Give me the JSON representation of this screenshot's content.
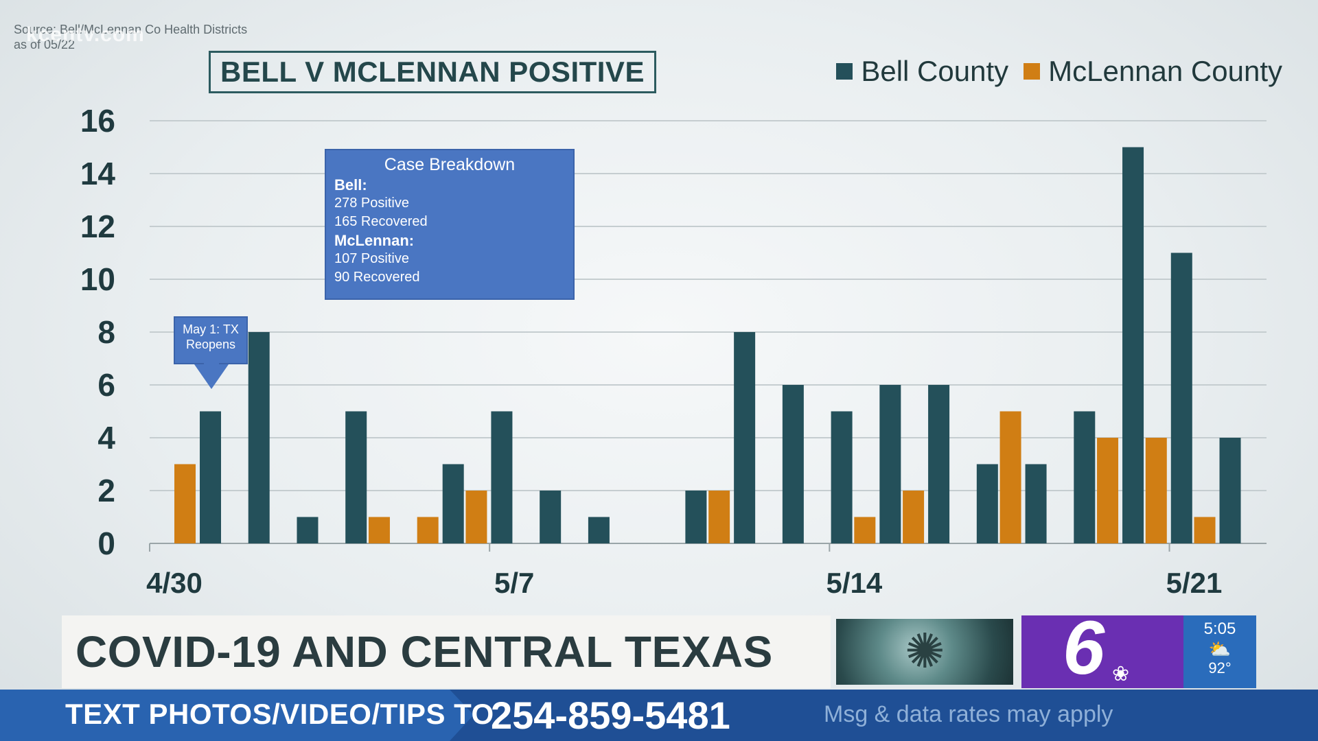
{
  "source": {
    "line1": "Source: Bell/McLennan Co Health Districts",
    "line2": "as of 05/22",
    "watermark": "kcentv.com"
  },
  "colors": {
    "bell": "#24505a",
    "mclennan": "#d07e14",
    "grid": "#c5cdd0",
    "axis_text": "#1f3a3f"
  },
  "chart_data": {
    "type": "bar",
    "title": "BELL V MCLENNAN POSITIVE",
    "xlabel": "",
    "ylabel": "",
    "ylim": [
      0,
      16
    ],
    "yticks": [
      0,
      2,
      4,
      6,
      8,
      10,
      12,
      14,
      16
    ],
    "grid": true,
    "legend_position": "top-right",
    "categories": [
      "4/30",
      "5/1",
      "5/2",
      "5/3",
      "5/4",
      "5/5",
      "5/6",
      "5/7",
      "5/8",
      "5/9",
      "5/10",
      "5/11",
      "5/12",
      "5/13",
      "5/14",
      "5/15",
      "5/16",
      "5/17",
      "5/18",
      "5/19",
      "5/20",
      "5/21",
      "5/22"
    ],
    "x_tick_labels": [
      {
        "index": 0,
        "label": "4/30"
      },
      {
        "index": 7,
        "label": "5/7"
      },
      {
        "index": 14,
        "label": "5/14"
      },
      {
        "index": 21,
        "label": "5/21"
      }
    ],
    "series": [
      {
        "name": "Bell County",
        "values": [
          5,
          8,
          1,
          5,
          0,
          3,
          5,
          2,
          1,
          0,
          2,
          8,
          6,
          5,
          6,
          6,
          3,
          3,
          5,
          15,
          11,
          4,
          0
        ]
      },
      {
        "name": "McLennan County",
        "values": [
          3,
          0,
          0,
          0,
          1,
          1,
          2,
          0,
          0,
          0,
          0,
          2,
          0,
          0,
          1,
          2,
          0,
          5,
          0,
          4,
          4,
          1,
          0
        ]
      }
    ]
  },
  "breakdown": {
    "title": "Case Breakdown",
    "bell_label": "Bell:",
    "bell_positive": "278 Positive",
    "bell_recovered": "165 Recovered",
    "mclennan_label": "McLennan:",
    "mclennan_positive": "107 Positive",
    "mclennan_recovered": "90 Recovered"
  },
  "callout": {
    "line1": "May 1: TX",
    "line2": "Reopens"
  },
  "lower_third": {
    "headline": "COVID-19 AND CENTRAL TEXAS",
    "logo_text": "6",
    "time": "5:05",
    "temperature": "92°",
    "weather_icon": "partly-cloudy-icon"
  },
  "ticker": {
    "label": "TEXT PHOTOS/VIDEO/TIPS TO",
    "phone": "254-859-5481",
    "note": "Msg & data rates may apply"
  }
}
